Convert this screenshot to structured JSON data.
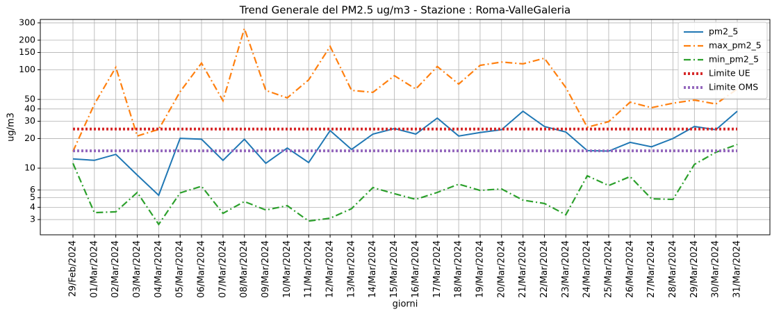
{
  "chart_data": {
    "type": "line",
    "title": "Trend Generale del PM2.5 ug/m3 - Stazione : Roma-ValleGaleria",
    "x_label": "giorni",
    "y_label": "ug/m3",
    "categories": [
      "29/Feb/2024",
      "01/Mar/2024",
      "02/Mar/2024",
      "03/Mar/2024",
      "04/Mar/2024",
      "05/Mar/2024",
      "06/Mar/2024",
      "07/Mar/2024",
      "08/Mar/2024",
      "09/Mar/2024",
      "10/Mar/2024",
      "11/Mar/2024",
      "12/Mar/2024",
      "13/Mar/2024",
      "14/Mar/2024",
      "15/Mar/2024",
      "16/Mar/2024",
      "17/Mar/2024",
      "18/Mar/2024",
      "19/Mar/2024",
      "20/Mar/2024",
      "21/Mar/2024",
      "22/Mar/2024",
      "23/Mar/2024",
      "24/Mar/2024",
      "25/Mar/2024",
      "26/Mar/2024",
      "27/Mar/2024",
      "28/Mar/2024",
      "29/Mar/2024",
      "30/Mar/2024",
      "31/Mar/2024"
    ],
    "series": [
      {
        "name": "pm2_5",
        "color": "#1f77b4",
        "style": "solid",
        "values": [
          12.4,
          12.0,
          13.8,
          8.5,
          5.3,
          20.1,
          19.7,
          12.0,
          19.7,
          11.2,
          16.0,
          11.4,
          24.1,
          15.5,
          22.2,
          25.3,
          22.2,
          32.3,
          21.2,
          23,
          24.6,
          37.9,
          26.5,
          23.3,
          15.1,
          14.9,
          18.3,
          16.5,
          20,
          26.5,
          24.6,
          37.9
        ]
      },
      {
        "name": "max_pm2_5",
        "color": "#ff7f0e",
        "style": "dashdot",
        "values": [
          14.8,
          44.7,
          106,
          21.2,
          24.8,
          59.9,
          117,
          48.5,
          263,
          61.8,
          51.8,
          79,
          173,
          61.8,
          59,
          87,
          63.8,
          108,
          71.6,
          111,
          120,
          115,
          131,
          66,
          26.1,
          29.7,
          46.9,
          41.2,
          45.8,
          49.3,
          44.9,
          63.8
        ]
      },
      {
        "name": "min_pm2_5",
        "color": "#2ca02c",
        "style": "dashdot",
        "values": [
          11.2,
          3.53,
          3.6,
          5.66,
          2.68,
          5.6,
          6.55,
          3.47,
          4.58,
          3.75,
          4.15,
          2.9,
          3.1,
          3.87,
          6.35,
          5.5,
          4.81,
          5.66,
          6.87,
          5.94,
          6.14,
          4.73,
          4.37,
          3.36,
          8.36,
          6.65,
          8.2,
          4.88,
          4.81,
          10.9,
          14.5,
          17.4
        ]
      },
      {
        "name": "Limite UE",
        "color": "#d62728",
        "style": "dotted",
        "values": [
          25,
          25,
          25,
          25,
          25,
          25,
          25,
          25,
          25,
          25,
          25,
          25,
          25,
          25,
          25,
          25,
          25,
          25,
          25,
          25,
          25,
          25,
          25,
          25,
          25,
          25,
          25,
          25,
          25,
          25,
          25,
          25
        ]
      },
      {
        "name": "Limite OMS",
        "color": "#9467bd",
        "style": "dotted",
        "values": [
          15,
          15,
          15,
          15,
          15,
          15,
          15,
          15,
          15,
          15,
          15,
          15,
          15,
          15,
          15,
          15,
          15,
          15,
          15,
          15,
          15,
          15,
          15,
          15,
          15,
          15,
          15,
          15,
          15,
          15,
          15,
          15
        ]
      }
    ],
    "ylim": [
      2.1,
      325
    ],
    "yticks": [
      3,
      4,
      5,
      6,
      10,
      20,
      30,
      40,
      50,
      100,
      150,
      200,
      300
    ],
    "log_y": true,
    "grid": true,
    "legend": "upper right"
  }
}
